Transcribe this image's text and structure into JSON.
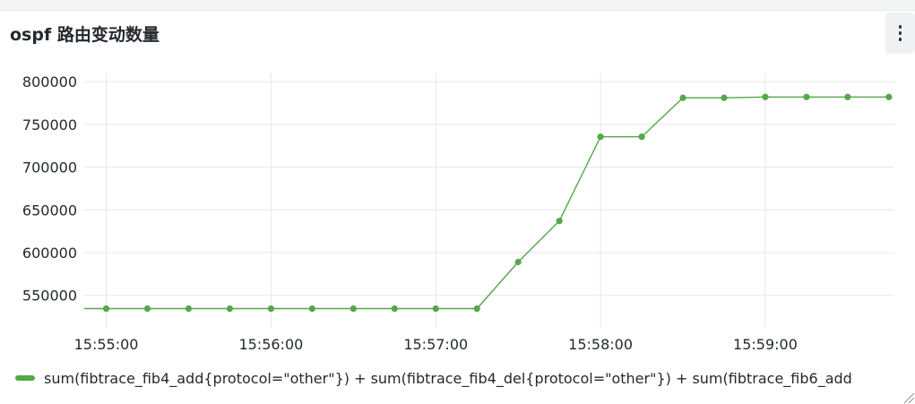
{
  "panel": {
    "title": "ospf 路由变动数量",
    "menu_icon": "vertical-ellipsis-icon",
    "resize_icon": "resize-handle-icon"
  },
  "colors": {
    "series": "#56a64b",
    "grid": "#e6e7e8",
    "axis_text": "#24292e"
  },
  "chart_data": {
    "type": "line",
    "title": "ospf 路由变动数量",
    "xlabel": "",
    "ylabel": "",
    "grid": true,
    "legend_placement": "bottom-left",
    "xlim": [
      "15:54:52",
      "15:59:47"
    ],
    "ylim": [
      512000,
      820000
    ],
    "x_ticks": [
      "15:55:00",
      "15:56:00",
      "15:57:00",
      "15:58:00",
      "15:59:00"
    ],
    "y_ticks": [
      550000,
      600000,
      650000,
      700000,
      750000,
      800000
    ],
    "y_tick_labels": [
      "550000",
      "600000",
      "650000",
      "700000",
      "750000",
      "800000"
    ],
    "series": [
      {
        "name": "sum(fibtrace_fib4_add{protocol=\"other\"}) + sum(fibtrace_fib4_del{protocol=\"other\"}) + sum(fibtrace_fib6_add",
        "x": [
          "15:54:52",
          "15:55:00",
          "15:55:15",
          "15:55:30",
          "15:55:45",
          "15:56:00",
          "15:56:15",
          "15:56:30",
          "15:56:45",
          "15:57:00",
          "15:57:15",
          "15:57:30",
          "15:57:45",
          "15:58:00",
          "15:58:15",
          "15:58:30",
          "15:58:45",
          "15:59:00",
          "15:59:15",
          "15:59:30",
          "15:59:45"
        ],
        "values": [
          534500,
          534500,
          534500,
          534500,
          534500,
          534500,
          534500,
          534500,
          534500,
          534500,
          534500,
          589000,
          637000,
          735500,
          735500,
          781000,
          781000,
          782000,
          782000,
          782000,
          782000
        ],
        "markers": [
          false,
          true,
          true,
          true,
          true,
          true,
          true,
          true,
          true,
          true,
          true,
          true,
          true,
          true,
          true,
          true,
          true,
          true,
          true,
          true,
          true
        ]
      }
    ]
  }
}
